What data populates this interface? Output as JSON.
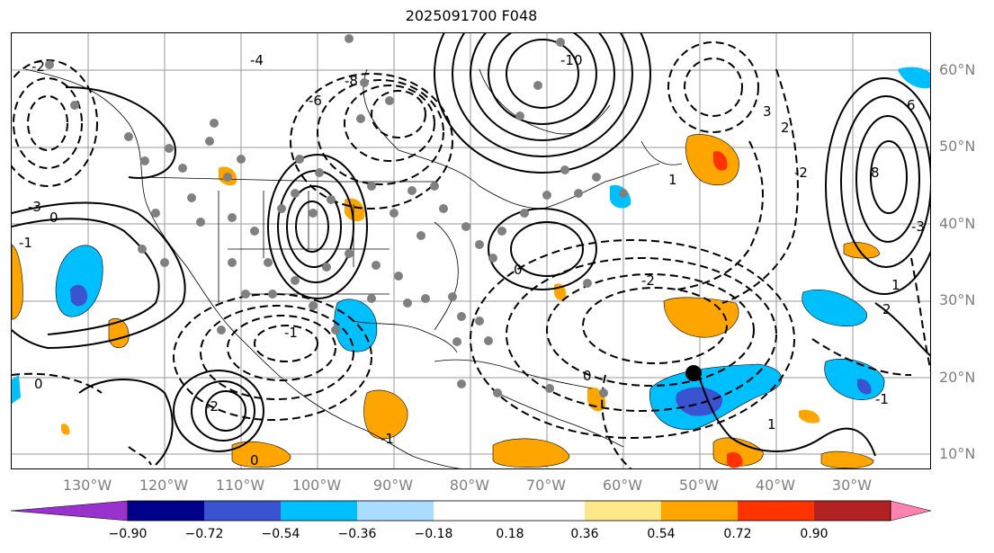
{
  "title": "2025091700 F048",
  "map": {
    "lat_labels": [
      "60°N",
      "50°N",
      "40°N",
      "30°N",
      "20°N",
      "10°N"
    ],
    "lon_labels": [
      "130°W",
      "120°W",
      "110°W",
      "100°W",
      "90°W",
      "80°W",
      "70°W",
      "60°W",
      "50°W",
      "40°W",
      "30°W"
    ],
    "contour_labels": [
      "-2",
      "-3",
      "0",
      "-1",
      "-4",
      "-6",
      "-8",
      "-10",
      "1",
      "2",
      "3",
      "-3",
      "-2",
      "8",
      "6",
      "1",
      "0",
      "-1",
      "-2",
      "2",
      "0",
      "1",
      "-1",
      "0",
      "-2",
      "-1",
      "0"
    ],
    "marker": {
      "lat": 20.5,
      "lon": -51,
      "color": "#000000"
    },
    "station_color": "#808080",
    "contour_color": "#000000"
  },
  "colorbar": {
    "ticks": [
      "−0.90",
      "−0.72",
      "−0.54",
      "−0.36",
      "−0.18",
      "0.18",
      "0.36",
      "0.54",
      "0.72",
      "0.90"
    ],
    "colors": [
      "#9932cc",
      "#00008b",
      "#3a53d0",
      "#00bfff",
      "#aadcff",
      "#ffffff",
      "#ffe88a",
      "#ffa500",
      "#ff3300",
      "#b22222",
      "#ff82b0"
    ]
  }
}
